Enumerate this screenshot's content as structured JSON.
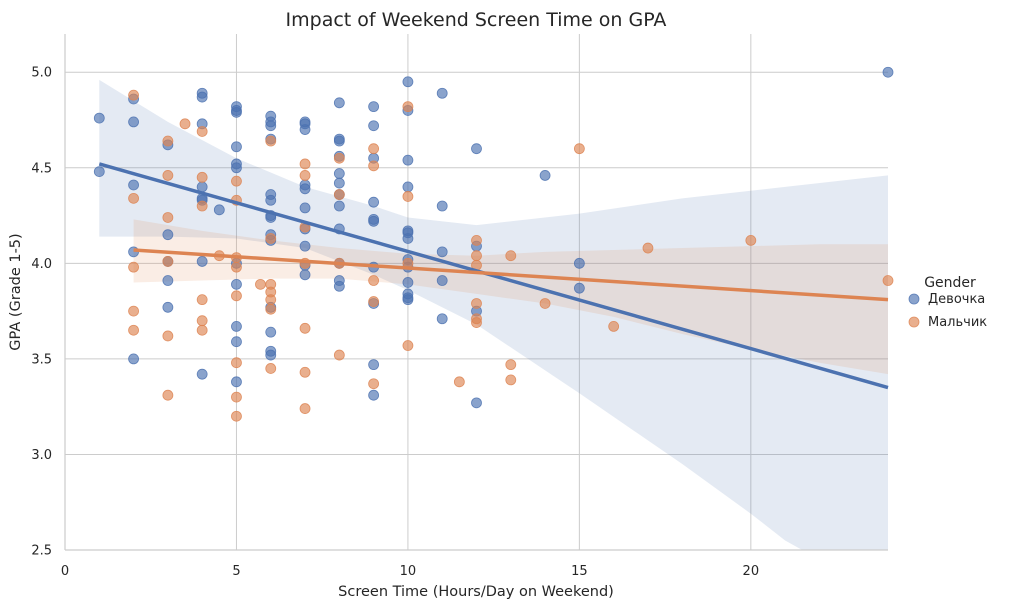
{
  "chart_data": {
    "type": "scatter",
    "title": "Impact of Weekend Screen Time on GPA",
    "xlabel": "Screen Time (Hours/Day on Weekend)",
    "ylabel": "GPA (Grade 1-5)",
    "xlim": [
      0,
      24
    ],
    "ylim": [
      2.5,
      5.2
    ],
    "xticks": [
      0,
      5,
      10,
      15,
      20
    ],
    "yticks": [
      2.5,
      3.0,
      3.5,
      4.0,
      4.5,
      5.0
    ],
    "xtick_labels": [
      "0",
      "5",
      "10",
      "15",
      "20"
    ],
    "ytick_labels": [
      "2.5",
      "3.0",
      "3.5",
      "4.0",
      "4.5",
      "5.0"
    ],
    "grid": true,
    "legend_position": "right",
    "legend_title": "Gender",
    "series": [
      {
        "name": "Девочка",
        "color": "#4C72B0",
        "points": [
          [
            1,
            4.76
          ],
          [
            1,
            4.48
          ],
          [
            2,
            4.86
          ],
          [
            2,
            4.74
          ],
          [
            2,
            4.41
          ],
          [
            2,
            4.06
          ],
          [
            2,
            3.5
          ],
          [
            3,
            4.62
          ],
          [
            3,
            4.15
          ],
          [
            3,
            4.01
          ],
          [
            3,
            3.91
          ],
          [
            3,
            3.77
          ],
          [
            4,
            4.89
          ],
          [
            4,
            4.87
          ],
          [
            4,
            4.73
          ],
          [
            4,
            4.4
          ],
          [
            4,
            4.34
          ],
          [
            4,
            4.33
          ],
          [
            4,
            4.01
          ],
          [
            4,
            3.42
          ],
          [
            4.5,
            4.28
          ],
          [
            5,
            4.82
          ],
          [
            5,
            4.8
          ],
          [
            5,
            4.79
          ],
          [
            5,
            4.61
          ],
          [
            5,
            4.52
          ],
          [
            5,
            4.5
          ],
          [
            5,
            4.0
          ],
          [
            5,
            3.89
          ],
          [
            5,
            3.67
          ],
          [
            5,
            3.59
          ],
          [
            5,
            3.38
          ],
          [
            6,
            4.77
          ],
          [
            6,
            4.74
          ],
          [
            6,
            4.72
          ],
          [
            6,
            4.65
          ],
          [
            6,
            4.36
          ],
          [
            6,
            4.33
          ],
          [
            6,
            4.25
          ],
          [
            6,
            4.24
          ],
          [
            6,
            4.15
          ],
          [
            6,
            4.12
          ],
          [
            6,
            3.77
          ],
          [
            6,
            3.64
          ],
          [
            6,
            3.54
          ],
          [
            6,
            3.52
          ],
          [
            7,
            4.74
          ],
          [
            7,
            4.73
          ],
          [
            7,
            4.7
          ],
          [
            7,
            4.41
          ],
          [
            7,
            4.39
          ],
          [
            7,
            4.29
          ],
          [
            7,
            4.18
          ],
          [
            7,
            4.09
          ],
          [
            7,
            3.99
          ],
          [
            7,
            3.94
          ],
          [
            8,
            4.84
          ],
          [
            8,
            4.65
          ],
          [
            8,
            4.64
          ],
          [
            8,
            4.56
          ],
          [
            8,
            4.47
          ],
          [
            8,
            4.42
          ],
          [
            8,
            4.36
          ],
          [
            8,
            4.3
          ],
          [
            8,
            4.18
          ],
          [
            8,
            4.0
          ],
          [
            8,
            3.91
          ],
          [
            8,
            3.88
          ],
          [
            9,
            4.82
          ],
          [
            9,
            4.72
          ],
          [
            9,
            4.55
          ],
          [
            9,
            4.32
          ],
          [
            9,
            4.23
          ],
          [
            9,
            4.22
          ],
          [
            9,
            3.98
          ],
          [
            9,
            3.79
          ],
          [
            9,
            3.47
          ],
          [
            9,
            3.31
          ],
          [
            10,
            4.95
          ],
          [
            10,
            4.8
          ],
          [
            10,
            4.54
          ],
          [
            10,
            4.4
          ],
          [
            10,
            4.17
          ],
          [
            10,
            4.16
          ],
          [
            10,
            4.13
          ],
          [
            10,
            4.02
          ],
          [
            10,
            3.98
          ],
          [
            10,
            3.9
          ],
          [
            10,
            3.84
          ],
          [
            10,
            3.82
          ],
          [
            10,
            3.81
          ],
          [
            11,
            4.89
          ],
          [
            11,
            4.3
          ],
          [
            11,
            4.06
          ],
          [
            11,
            3.91
          ],
          [
            11,
            3.71
          ],
          [
            12,
            4.6
          ],
          [
            12,
            4.09
          ],
          [
            12,
            3.75
          ],
          [
            12,
            3.27
          ],
          [
            14,
            4.46
          ],
          [
            15,
            4.0
          ],
          [
            15,
            3.87
          ],
          [
            24,
            5.0
          ]
        ],
        "regression": {
          "x_start": 1,
          "y_start": 4.52,
          "x_end": 24,
          "y_end": 3.35
        },
        "ci_upper": [
          [
            1,
            4.96
          ],
          [
            3,
            4.74
          ],
          [
            5,
            4.55
          ],
          [
            7,
            4.4
          ],
          [
            9,
            4.3
          ],
          [
            10,
            4.24
          ],
          [
            12,
            4.2
          ],
          [
            15,
            4.26
          ],
          [
            18,
            4.34
          ],
          [
            21,
            4.4
          ],
          [
            24,
            4.46
          ]
        ],
        "ci_lower": [
          [
            1,
            4.14
          ],
          [
            3,
            4.14
          ],
          [
            5,
            4.13
          ],
          [
            7,
            4.08
          ],
          [
            9,
            3.94
          ],
          [
            10,
            3.86
          ],
          [
            12,
            3.68
          ],
          [
            15,
            3.32
          ],
          [
            18,
            2.95
          ],
          [
            20,
            2.69
          ],
          [
            21,
            2.55
          ],
          [
            21.5,
            2.5
          ],
          [
            24,
            2.5
          ]
        ]
      },
      {
        "name": "Мальчик",
        "color": "#DD8452",
        "points": [
          [
            2,
            4.88
          ],
          [
            2,
            4.34
          ],
          [
            2,
            3.98
          ],
          [
            2,
            3.75
          ],
          [
            2,
            3.65
          ],
          [
            3,
            4.64
          ],
          [
            3,
            4.46
          ],
          [
            3,
            4.24
          ],
          [
            3,
            4.01
          ],
          [
            3,
            3.62
          ],
          [
            3,
            3.31
          ],
          [
            3.5,
            4.73
          ],
          [
            4,
            4.69
          ],
          [
            4,
            4.45
          ],
          [
            4,
            4.3
          ],
          [
            4,
            3.81
          ],
          [
            4,
            3.7
          ],
          [
            4,
            3.65
          ],
          [
            4.5,
            4.04
          ],
          [
            5,
            4.43
          ],
          [
            5,
            4.33
          ],
          [
            5,
            4.03
          ],
          [
            5,
            3.98
          ],
          [
            5,
            3.83
          ],
          [
            5,
            3.48
          ],
          [
            5,
            3.3
          ],
          [
            5,
            3.2
          ],
          [
            5.7,
            3.89
          ],
          [
            6,
            4.64
          ],
          [
            6,
            4.13
          ],
          [
            6,
            3.89
          ],
          [
            6,
            3.85
          ],
          [
            6,
            3.81
          ],
          [
            6,
            3.76
          ],
          [
            6,
            3.45
          ],
          [
            7,
            4.52
          ],
          [
            7,
            4.46
          ],
          [
            7,
            4.19
          ],
          [
            7,
            4.0
          ],
          [
            7,
            3.66
          ],
          [
            7,
            3.43
          ],
          [
            7,
            3.24
          ],
          [
            8,
            4.55
          ],
          [
            8,
            4.36
          ],
          [
            8,
            4.0
          ],
          [
            8,
            3.52
          ],
          [
            9,
            4.6
          ],
          [
            9,
            4.51
          ],
          [
            9,
            3.91
          ],
          [
            9,
            3.8
          ],
          [
            9,
            3.37
          ],
          [
            10,
            4.82
          ],
          [
            10,
            4.35
          ],
          [
            10,
            4.0
          ],
          [
            10,
            3.57
          ],
          [
            11.5,
            3.38
          ],
          [
            12,
            4.12
          ],
          [
            12,
            4.04
          ],
          [
            12,
            3.99
          ],
          [
            12,
            3.79
          ],
          [
            12,
            3.71
          ],
          [
            12,
            3.69
          ],
          [
            13,
            4.04
          ],
          [
            13,
            3.47
          ],
          [
            13,
            3.39
          ],
          [
            14,
            3.79
          ],
          [
            15,
            4.6
          ],
          [
            16,
            3.67
          ],
          [
            17,
            4.08
          ],
          [
            20,
            4.12
          ],
          [
            24,
            3.91
          ]
        ],
        "regression": {
          "x_start": 2,
          "y_start": 4.07,
          "x_end": 24,
          "y_end": 3.81
        },
        "ci_upper": [
          [
            2,
            4.23
          ],
          [
            4,
            4.17
          ],
          [
            6,
            4.12
          ],
          [
            8,
            4.08
          ],
          [
            10,
            4.05
          ],
          [
            12,
            4.04
          ],
          [
            14,
            4.06
          ],
          [
            16,
            4.07
          ],
          [
            18,
            4.08
          ],
          [
            20,
            4.09
          ],
          [
            22,
            4.1
          ],
          [
            24,
            4.1
          ]
        ],
        "ci_lower": [
          [
            2,
            3.9
          ],
          [
            4,
            3.91
          ],
          [
            6,
            3.92
          ],
          [
            8,
            3.92
          ],
          [
            10,
            3.89
          ],
          [
            12,
            3.84
          ],
          [
            14,
            3.79
          ],
          [
            16,
            3.72
          ],
          [
            18,
            3.63
          ],
          [
            20,
            3.55
          ],
          [
            22,
            3.48
          ],
          [
            24,
            3.42
          ]
        ]
      }
    ]
  }
}
